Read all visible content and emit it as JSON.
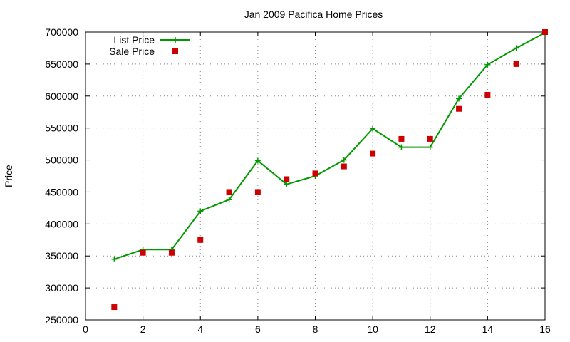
{
  "chart_data": {
    "type": "line",
    "title": "Jan 2009 Pacifica Home Prices",
    "xlabel": "",
    "ylabel": "Price",
    "xlim": [
      0,
      16
    ],
    "ylim": [
      250000,
      700000
    ],
    "xticks": [
      0,
      2,
      4,
      6,
      8,
      10,
      12,
      14,
      16
    ],
    "yticks": [
      250000,
      300000,
      350000,
      400000,
      450000,
      500000,
      550000,
      600000,
      650000,
      700000
    ],
    "grid": true,
    "legend_position": "top-left",
    "series": [
      {
        "name": "List Price",
        "style": "line-with-plus-markers",
        "color": "#009900",
        "x": [
          1,
          2,
          3,
          4,
          5,
          6,
          7,
          8,
          9,
          10,
          11,
          12,
          13,
          14,
          15,
          16
        ],
        "y": [
          345000,
          360000,
          360000,
          420000,
          438000,
          499000,
          462000,
          475000,
          500000,
          549000,
          520000,
          520000,
          596000,
          649000,
          675000,
          699000
        ]
      },
      {
        "name": "Sale Price",
        "style": "square-markers",
        "color": "#cc0000",
        "x": [
          1,
          2,
          3,
          4,
          5,
          6,
          7,
          8,
          9,
          10,
          11,
          12,
          13,
          14,
          15,
          16
        ],
        "y": [
          270000,
          355000,
          355000,
          375000,
          450000,
          450000,
          470000,
          479000,
          490000,
          510000,
          533000,
          533000,
          580000,
          602000,
          650000,
          700000
        ]
      }
    ]
  }
}
